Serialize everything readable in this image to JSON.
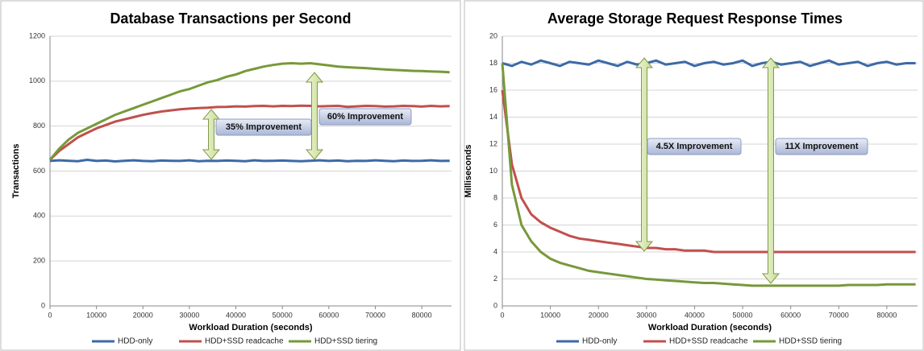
{
  "chart_data": [
    {
      "type": "line",
      "title": "Database Transactions per Second",
      "x_label": "Workload Duration (seconds)",
      "y_label": "Transactions",
      "x": [
        0,
        2000,
        4000,
        6000,
        8000,
        10000,
        12000,
        14000,
        16000,
        18000,
        20000,
        22000,
        24000,
        26000,
        28000,
        30000,
        32000,
        34000,
        36000,
        38000,
        40000,
        42000,
        44000,
        46000,
        48000,
        50000,
        52000,
        54000,
        56000,
        58000,
        60000,
        62000,
        64000,
        66000,
        68000,
        70000,
        72000,
        74000,
        76000,
        78000,
        80000,
        82000,
        84000,
        86000
      ],
      "xlim": [
        0,
        86400
      ],
      "xticks": [
        0,
        10000,
        20000,
        30000,
        40000,
        50000,
        60000,
        70000,
        80000
      ],
      "ylim": [
        0,
        1200
      ],
      "yticks": [
        0,
        200,
        400,
        600,
        800,
        1000,
        1200
      ],
      "grid": true,
      "series": [
        {
          "name": "HDD-only",
          "color": "#3d6aa5",
          "values": [
            645,
            648,
            646,
            644,
            650,
            645,
            647,
            643,
            646,
            648,
            645,
            644,
            647,
            646,
            645,
            648,
            644,
            646,
            645,
            647,
            646,
            644,
            648,
            645,
            646,
            647,
            645,
            644,
            646,
            648,
            645,
            647,
            644,
            646,
            645,
            648,
            646,
            644,
            647,
            645,
            646,
            648,
            645,
            646
          ]
        },
        {
          "name": "HDD+SSD readcache",
          "color": "#c0504d",
          "values": [
            650,
            690,
            720,
            750,
            770,
            790,
            805,
            820,
            830,
            840,
            850,
            858,
            865,
            870,
            875,
            878,
            880,
            882,
            885,
            886,
            888,
            887,
            889,
            890,
            888,
            890,
            889,
            891,
            890,
            888,
            889,
            890,
            886,
            888,
            890,
            889,
            887,
            888,
            890,
            889,
            887,
            890,
            888,
            889
          ]
        },
        {
          "name": "HDD+SSD tiering",
          "color": "#77993a",
          "values": [
            650,
            700,
            740,
            770,
            790,
            810,
            830,
            850,
            865,
            880,
            895,
            910,
            925,
            940,
            955,
            965,
            980,
            995,
            1005,
            1020,
            1030,
            1045,
            1055,
            1065,
            1072,
            1078,
            1080,
            1078,
            1080,
            1075,
            1070,
            1065,
            1062,
            1060,
            1058,
            1055,
            1052,
            1050,
            1048,
            1046,
            1045,
            1043,
            1042,
            1040
          ]
        }
      ],
      "annotations": [
        "35% Improvement",
        "60% Improvement"
      ]
    },
    {
      "type": "line",
      "title": "Average Storage Request Response Times",
      "x_label": "Workload Duration (seconds)",
      "y_label": "Milliseconds",
      "x": [
        0,
        2000,
        4000,
        6000,
        8000,
        10000,
        12000,
        14000,
        16000,
        18000,
        20000,
        22000,
        24000,
        26000,
        28000,
        30000,
        32000,
        34000,
        36000,
        38000,
        40000,
        42000,
        44000,
        46000,
        48000,
        50000,
        52000,
        54000,
        56000,
        58000,
        60000,
        62000,
        64000,
        66000,
        68000,
        70000,
        72000,
        74000,
        76000,
        78000,
        80000,
        82000,
        84000,
        86000
      ],
      "xlim": [
        0,
        86400
      ],
      "xticks": [
        0,
        10000,
        20000,
        30000,
        40000,
        50000,
        60000,
        70000,
        80000
      ],
      "ylim": [
        0,
        20
      ],
      "yticks": [
        0,
        2,
        4,
        6,
        8,
        10,
        12,
        14,
        16,
        18,
        20
      ],
      "grid": true,
      "series": [
        {
          "name": "HDD-only",
          "color": "#3d6aa5",
          "values": [
            18,
            17.8,
            18.1,
            17.9,
            18.2,
            18,
            17.8,
            18.1,
            18,
            17.9,
            18.2,
            18,
            17.8,
            18.1,
            17.9,
            18,
            18.2,
            17.9,
            18,
            18.1,
            17.8,
            18,
            18.1,
            17.9,
            18,
            18.2,
            17.8,
            18,
            18.1,
            17.9,
            18,
            18.1,
            17.8,
            18,
            18.2,
            17.9,
            18,
            18.1,
            17.8,
            18,
            18.1,
            17.9,
            18,
            18
          ]
        },
        {
          "name": "HDD+SSD readcache",
          "color": "#c0504d",
          "values": [
            16,
            10.5,
            8,
            6.8,
            6.2,
            5.8,
            5.5,
            5.2,
            5,
            4.9,
            4.8,
            4.7,
            4.6,
            4.5,
            4.4,
            4.3,
            4.3,
            4.2,
            4.2,
            4.1,
            4.1,
            4.1,
            4,
            4,
            4,
            4,
            4,
            4,
            4,
            4,
            4,
            4,
            4,
            4,
            4,
            4,
            4,
            4,
            4,
            4,
            4,
            4,
            4,
            4
          ]
        },
        {
          "name": "HDD+SSD tiering",
          "color": "#77993a",
          "values": [
            18,
            9,
            6,
            4.8,
            4,
            3.5,
            3.2,
            3,
            2.8,
            2.6,
            2.5,
            2.4,
            2.3,
            2.2,
            2.1,
            2,
            1.95,
            1.9,
            1.85,
            1.8,
            1.75,
            1.7,
            1.7,
            1.65,
            1.6,
            1.55,
            1.5,
            1.5,
            1.5,
            1.5,
            1.5,
            1.5,
            1.5,
            1.5,
            1.5,
            1.5,
            1.55,
            1.55,
            1.55,
            1.55,
            1.6,
            1.6,
            1.6,
            1.6
          ]
        }
      ],
      "annotations": [
        "4.5X Improvement",
        "11X Improvement"
      ]
    }
  ]
}
